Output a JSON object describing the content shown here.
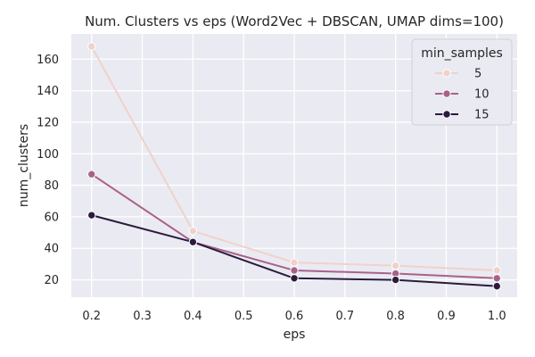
{
  "chart_data": {
    "type": "line",
    "title": "Num. Clusters vs eps (Word2Vec + DBSCAN, UMAP dims=100)",
    "xlabel": "eps",
    "ylabel": "num_clusters",
    "x": [
      0.2,
      0.4,
      0.6,
      0.8,
      1.0
    ],
    "xlim": [
      0.16,
      1.04
    ],
    "ylim": [
      9,
      176
    ],
    "xticks": [
      "0.2",
      "0.3",
      "0.4",
      "0.5",
      "0.6",
      "0.7",
      "0.8",
      "0.9",
      "1.0"
    ],
    "yticks": [
      "20",
      "40",
      "60",
      "80",
      "100",
      "120",
      "140",
      "160"
    ],
    "grid": true,
    "legend": {
      "title": "min_samples",
      "placement": "top-right"
    },
    "series": [
      {
        "name": "5",
        "color": "#f0d2cb",
        "values": [
          168,
          51,
          31,
          29,
          26
        ]
      },
      {
        "name": "10",
        "color": "#a8628a",
        "values": [
          87,
          44,
          26,
          24,
          21
        ]
      },
      {
        "name": "15",
        "color": "#2a1b3d",
        "values": [
          61,
          44,
          21,
          20,
          16
        ]
      }
    ],
    "style": {
      "plot_background": "#eaeaf2",
      "grid_color": "#ffffff"
    }
  }
}
